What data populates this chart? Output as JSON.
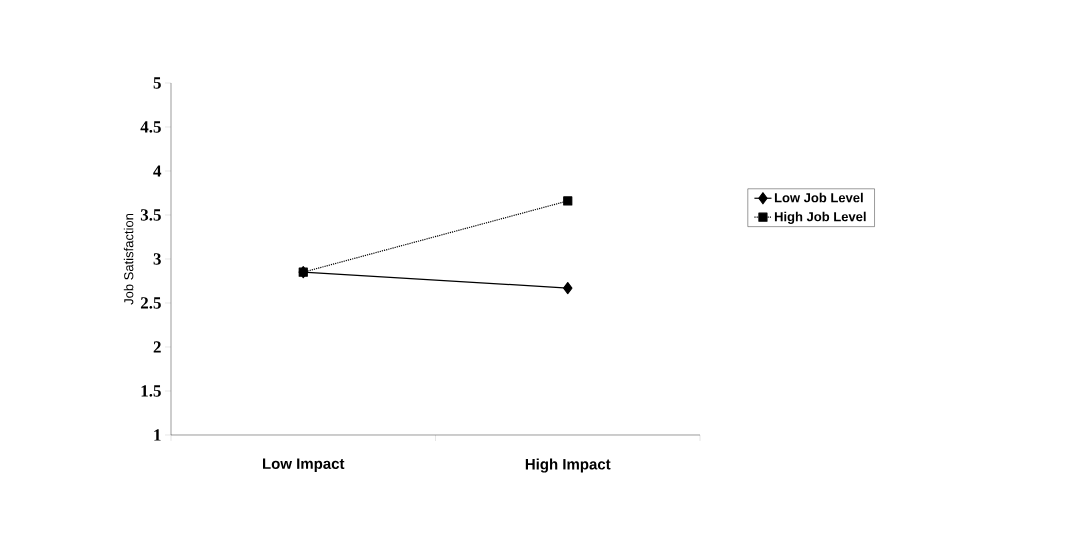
{
  "chart_data": {
    "type": "line",
    "ylabel": "Job Satisfaction",
    "categories": [
      "Low Impact",
      "High Impact"
    ],
    "series": [
      {
        "name": "Low Job Level",
        "color": "#000000",
        "values": [
          2.85,
          2.67
        ],
        "marker": "diamond",
        "line_style": "solid"
      },
      {
        "name": "High Job Level",
        "color": "#000000",
        "values": [
          2.85,
          3.66
        ],
        "marker": "square",
        "line_style": "dotted"
      }
    ],
    "ylim": [
      1,
      5
    ],
    "yticks": [
      1,
      1.5,
      2,
      2.5,
      3,
      3.5,
      4,
      4.5,
      5
    ],
    "grid": false,
    "legend": "right"
  }
}
